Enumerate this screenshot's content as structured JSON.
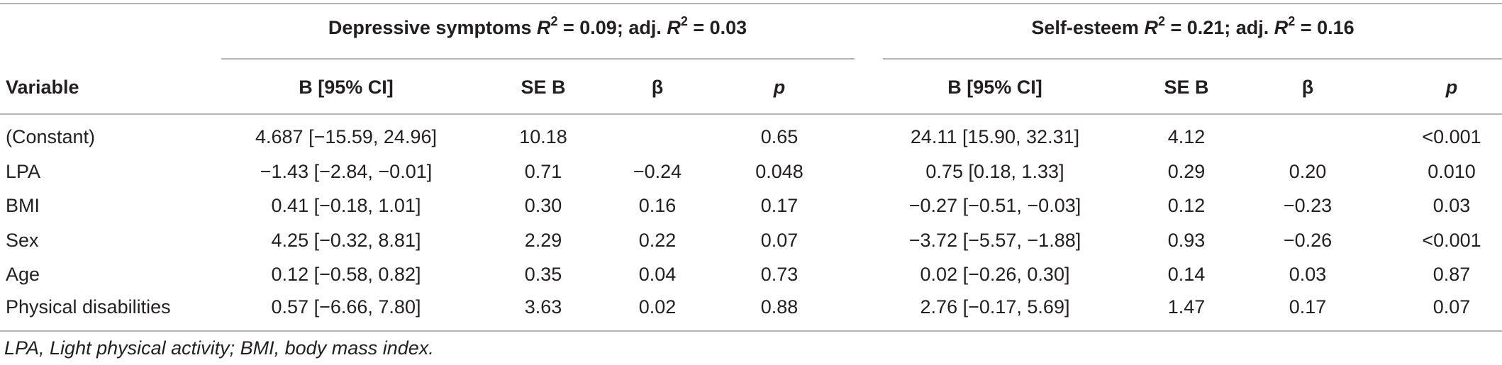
{
  "table": {
    "groups": [
      {
        "name": "Depressive symptoms",
        "r2_label": "R",
        "r2_sup": "2",
        "r2_value": " = 0.09; adj. ",
        "adj_label": "R",
        "adj_sup": "2",
        "adj_value": " = 0.03"
      },
      {
        "name": "Self-esteem",
        "r2_label": "R",
        "r2_sup": "2",
        "r2_value": " = 0.21; adj. ",
        "adj_label": "R",
        "adj_sup": "2",
        "adj_value": " = 0.16"
      }
    ],
    "columns": [
      "Variable",
      "B [95% CI]",
      "SE B",
      "β",
      "p",
      "B [95% CI]",
      "SE B",
      "β",
      "p"
    ],
    "rows": [
      [
        "(Constant)",
        "4.687 [−15.59, 24.96]",
        "10.18",
        "",
        "0.65",
        "24.11 [15.90, 32.31]",
        "4.12",
        "",
        "<0.001"
      ],
      [
        "LPA",
        "−1.43 [−2.84, −0.01]",
        "0.71",
        "−0.24",
        "0.048",
        "0.75 [0.18, 1.33]",
        "0.29",
        "0.20",
        "0.010"
      ],
      [
        "BMI",
        "0.41 [−0.18, 1.01]",
        "0.30",
        "0.16",
        "0.17",
        "−0.27 [−0.51, −0.03]",
        "0.12",
        "−0.23",
        "0.03"
      ],
      [
        "Sex",
        "4.25 [−0.32, 8.81]",
        "2.29",
        "0.22",
        "0.07",
        "−3.72 [−5.57, −1.88]",
        "0.93",
        "−0.26",
        "<0.001"
      ],
      [
        "Age",
        "0.12 [−0.58, 0.82]",
        "0.35",
        "0.04",
        "0.73",
        "0.02 [−0.26, 0.30]",
        "0.14",
        "0.03",
        "0.87"
      ],
      [
        "Physical disabilities",
        "0.57 [−6.66, 7.80]",
        "3.63",
        "0.02",
        "0.88",
        "2.76 [−0.17, 5.69]",
        "1.47",
        "0.17",
        "0.07"
      ]
    ],
    "footnote": "LPA, Light physical activity; BMI, body mass index."
  }
}
